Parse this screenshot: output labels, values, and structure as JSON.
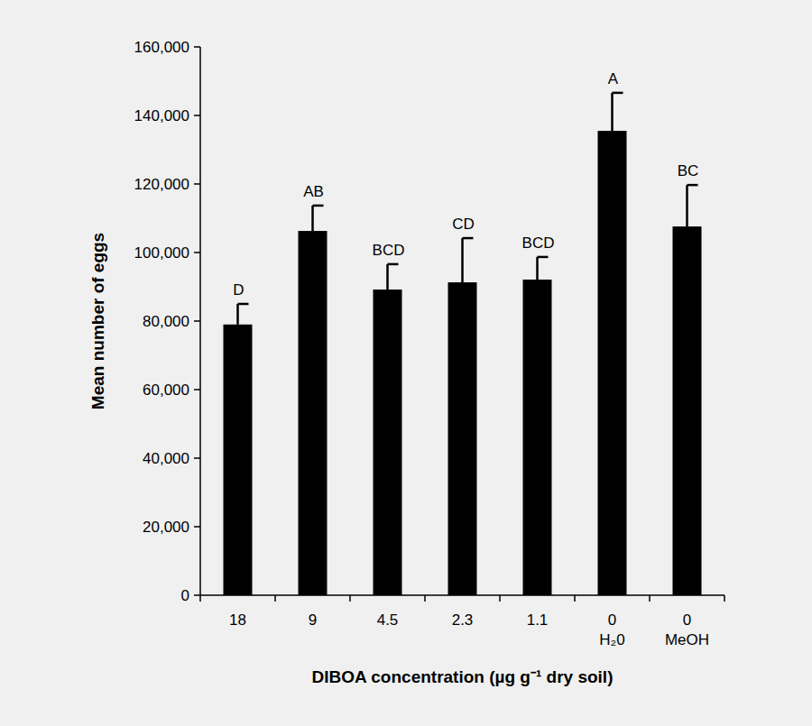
{
  "chart_data": {
    "type": "bar",
    "x_label": "DIBOA concentration (µg g⁻¹ dry soil)",
    "y_label": "Mean number of eggs",
    "categories": [
      "18",
      "9",
      "4.5",
      "2.3",
      "1.1",
      "0\nH₂0",
      "0\nMeOH"
    ],
    "values": [
      79000,
      106300,
      89200,
      91300,
      92100,
      135500,
      107600
    ],
    "errors": [
      6000,
      7400,
      7400,
      12900,
      6600,
      11100,
      12100
    ],
    "annotations": [
      "D",
      "AB",
      "BCD",
      "CD",
      "BCD",
      "A",
      "BC"
    ],
    "color": "#000000",
    "ylim": [
      0,
      160000
    ],
    "yticks": [
      0,
      {
        "value": 20000,
        "label": "20,000"
      },
      {
        "value": 40000,
        "label": "40,000"
      },
      {
        "value": 60000,
        "label": "60,000"
      },
      {
        "value": 80000,
        "label": "80,000"
      },
      {
        "value": 100000,
        "label": "100,000"
      },
      {
        "value": 120000,
        "label": "120,000"
      },
      {
        "value": 140000,
        "label": "140,000"
      },
      {
        "value": 160000,
        "label": "160,000"
      }
    ],
    "grid": false
  }
}
